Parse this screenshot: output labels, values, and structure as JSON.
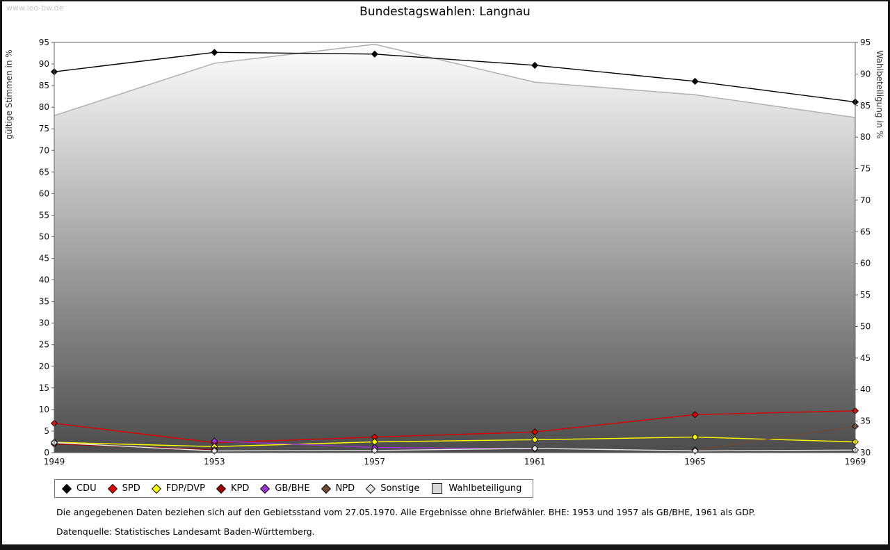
{
  "watermark": "www.leo-bw.de",
  "footnotes": [
    "Die angegebenen Daten beziehen sich auf den Gebietsstand vom 27.05.1970. Alle Ergebnisse ohne Briefwähler. BHE: 1953 und 1957 als GB/BHE, 1961 als GDP.",
    "Datenquelle: Statistisches Landesamt Baden-Württemberg."
  ],
  "chart_data": {
    "type": "line",
    "title": "Bundestagswahlen: Langnau",
    "x": [
      1949,
      1953,
      1957,
      1961,
      1965,
      1969
    ],
    "ylabel_left": "gültige Stimmen in %",
    "ylabel_right": "Wahlbeteiligung in %",
    "ylim_left": [
      0,
      95
    ],
    "ylim_right": [
      30,
      95
    ],
    "ytick_step": 5,
    "grid": false,
    "legend_position": "bottom",
    "area_gradient": [
      "#fdfdfd",
      "#4c4c4c"
    ],
    "series": [
      {
        "name": "CDU",
        "color": "#000000",
        "axis": "left",
        "values": [
          88.2,
          92.7,
          92.3,
          89.7,
          86.0,
          81.2
        ]
      },
      {
        "name": "SPD",
        "color": "#dd0000",
        "axis": "left",
        "values": [
          6.8,
          2.3,
          3.6,
          4.8,
          8.8,
          9.7
        ]
      },
      {
        "name": "FDP/DVP",
        "color": "#ffff00",
        "axis": "left",
        "values": [
          2.4,
          1.4,
          2.5,
          3.0,
          3.6,
          2.5
        ]
      },
      {
        "name": "KPD",
        "color": "#990000",
        "axis": "left",
        "values": [
          2.0,
          0.7,
          null,
          null,
          null,
          null
        ]
      },
      {
        "name": "GB/BHE",
        "color": "#9933cc",
        "axis": "left",
        "values": [
          null,
          2.7,
          1.2,
          0.9,
          null,
          null
        ]
      },
      {
        "name": "NPD",
        "color": "#6d4b35",
        "axis": "left",
        "values": [
          null,
          null,
          null,
          null,
          0.6,
          6.1
        ]
      },
      {
        "name": "Sonstige",
        "color": "#e6e6e6",
        "axis": "left",
        "values": [
          2.3,
          0.4,
          0.5,
          1.0,
          0.4,
          0.6
        ]
      },
      {
        "name": "Wahlbeteiligung",
        "color": "#b3b3b3",
        "axis": "right",
        "area": true,
        "values": [
          83.4,
          91.7,
          94.7,
          88.7,
          86.7,
          83.1
        ]
      }
    ]
  }
}
